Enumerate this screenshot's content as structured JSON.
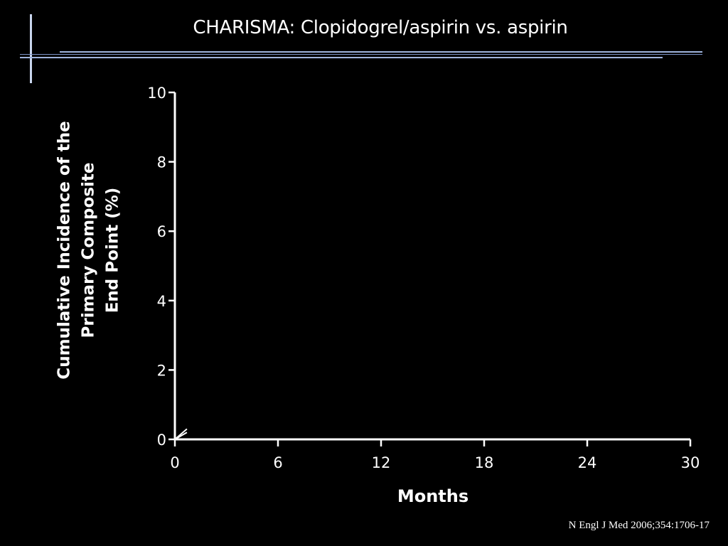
{
  "slide": {
    "title": "CHARISMA: Clopidogrel/aspirin vs. aspirin",
    "citation": "N Engl J Med 2006;354:1706-17"
  },
  "colors": {
    "background": "#000000",
    "text": "#ffffff",
    "axis": "#ffffff",
    "accent_lines": "#9fb3dc"
  },
  "chart_data": {
    "type": "line",
    "title": "",
    "xlabel": "Months",
    "ylabel": "Cumulative Incidence of the Primary Composite End Point (%)",
    "ylabel_lines": [
      "Cumulative Incidence of the",
      "Primary Composite",
      "End Point (%)"
    ],
    "x_ticks": [
      0,
      6,
      12,
      18,
      24,
      30
    ],
    "y_ticks": [
      0,
      2,
      4,
      6,
      8,
      10
    ],
    "xlim": [
      0,
      30
    ],
    "ylim": [
      0,
      10
    ],
    "grid": false,
    "series": [
      {
        "x": [
          0,
          0.7
        ],
        "y": [
          0,
          0.3
        ]
      },
      {
        "x": [
          0,
          0.7
        ],
        "y": [
          0,
          0.2
        ]
      }
    ]
  }
}
